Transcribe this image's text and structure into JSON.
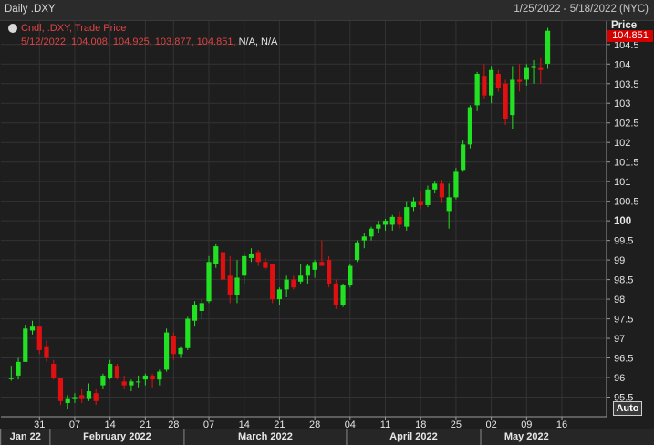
{
  "window": {
    "title": "Daily .DXY",
    "date_range": "1/25/2022 - 5/18/2022 (NYC)"
  },
  "legend": {
    "line1": "Cndl, .DXY, Trade Price",
    "line2_values": "5/12/2022, 104.008, 104.925, 103.877, 104.851,",
    "line2_na": "N/A, N/A"
  },
  "price_axis_title": "Price",
  "last_price_label": "104.851",
  "auto_label": "Auto",
  "colors": {
    "up": "#22e022",
    "down": "#e01010",
    "background": "#1e1e1e",
    "grid": "#333333",
    "last_price_tag": "#d40000"
  },
  "chart_data": {
    "type": "candlestick",
    "symbol": ".DXY",
    "ylim": [
      95.0,
      105.1
    ],
    "yticks": [
      95.5,
      96,
      96.5,
      97,
      97.5,
      98,
      98.5,
      99,
      99.5,
      100,
      100.5,
      101,
      101.5,
      102,
      102.5,
      103,
      103.5,
      104,
      104.5
    ],
    "ytick_labels": [
      "95.5",
      "96",
      "96.5",
      "97",
      "97.5",
      "98",
      "98.5",
      "99",
      "99.5",
      "100",
      "100.5",
      "101",
      "101.5",
      "102",
      "102.5",
      "103",
      "103.5",
      "104",
      "104.5"
    ],
    "xticks": [
      {
        "index": 4,
        "label": "31"
      },
      {
        "index": 9,
        "label": "07"
      },
      {
        "index": 14,
        "label": "14"
      },
      {
        "index": 19,
        "label": "21"
      },
      {
        "index": 23,
        "label": "28"
      },
      {
        "index": 28,
        "label": "07"
      },
      {
        "index": 33,
        "label": "14"
      },
      {
        "index": 38,
        "label": "21"
      },
      {
        "index": 43,
        "label": "28"
      },
      {
        "index": 48,
        "label": "04"
      },
      {
        "index": 53,
        "label": "11"
      },
      {
        "index": 58,
        "label": "18"
      },
      {
        "index": 63,
        "label": "25"
      },
      {
        "index": 68,
        "label": "02"
      },
      {
        "index": 73,
        "label": "09"
      },
      {
        "index": 78,
        "label": "16"
      }
    ],
    "months": [
      {
        "label": "Jan 22",
        "start": -1,
        "end": 6
      },
      {
        "label": "February 2022",
        "start": 6,
        "end": 25
      },
      {
        "label": "March 2022",
        "start": 25,
        "end": 48
      },
      {
        "label": "April 2022",
        "start": 48,
        "end": 67
      },
      {
        "label": "May 2022",
        "start": 67,
        "end": 80
      }
    ],
    "x_count": 80,
    "candles": [
      {
        "o": 95.96,
        "h": 96.3,
        "l": 95.92,
        "c": 96.0
      },
      {
        "o": 96.05,
        "h": 96.5,
        "l": 95.95,
        "c": 96.4
      },
      {
        "o": 96.4,
        "h": 97.35,
        "l": 96.4,
        "c": 97.25
      },
      {
        "o": 97.2,
        "h": 97.45,
        "l": 97.1,
        "c": 97.3
      },
      {
        "o": 97.3,
        "h": 97.3,
        "l": 96.6,
        "c": 96.7
      },
      {
        "o": 96.8,
        "h": 96.95,
        "l": 96.4,
        "c": 96.5
      },
      {
        "o": 96.35,
        "h": 96.45,
        "l": 95.95,
        "c": 96.0
      },
      {
        "o": 96.0,
        "h": 96.0,
        "l": 95.3,
        "c": 95.4
      },
      {
        "o": 95.35,
        "h": 95.55,
        "l": 95.2,
        "c": 95.45
      },
      {
        "o": 95.45,
        "h": 95.6,
        "l": 95.35,
        "c": 95.5
      },
      {
        "o": 95.55,
        "h": 95.7,
        "l": 95.35,
        "c": 95.45
      },
      {
        "o": 95.45,
        "h": 95.85,
        "l": 95.4,
        "c": 95.65
      },
      {
        "o": 95.6,
        "h": 95.7,
        "l": 95.3,
        "c": 95.4
      },
      {
        "o": 95.8,
        "h": 96.1,
        "l": 95.7,
        "c": 96.05
      },
      {
        "o": 96.0,
        "h": 96.45,
        "l": 95.95,
        "c": 96.35
      },
      {
        "o": 96.3,
        "h": 96.35,
        "l": 95.95,
        "c": 96.0
      },
      {
        "o": 95.9,
        "h": 96.05,
        "l": 95.7,
        "c": 95.8
      },
      {
        "o": 95.8,
        "h": 95.95,
        "l": 95.65,
        "c": 95.9
      },
      {
        "o": 95.9,
        "h": 96.05,
        "l": 95.75,
        "c": 95.9
      },
      {
        "o": 95.95,
        "h": 96.1,
        "l": 95.8,
        "c": 96.05
      },
      {
        "o": 96.05,
        "h": 96.1,
        "l": 95.75,
        "c": 95.95
      },
      {
        "o": 95.95,
        "h": 96.2,
        "l": 95.8,
        "c": 96.15
      },
      {
        "o": 96.2,
        "h": 97.25,
        "l": 96.15,
        "c": 97.15
      },
      {
        "o": 97.05,
        "h": 97.15,
        "l": 96.45,
        "c": 96.6
      },
      {
        "o": 96.6,
        "h": 96.8,
        "l": 96.5,
        "c": 96.75
      },
      {
        "o": 96.75,
        "h": 97.55,
        "l": 96.7,
        "c": 97.5
      },
      {
        "o": 97.45,
        "h": 97.95,
        "l": 97.3,
        "c": 97.85
      },
      {
        "o": 97.7,
        "h": 98.0,
        "l": 97.5,
        "c": 97.9
      },
      {
        "o": 97.95,
        "h": 99.1,
        "l": 97.9,
        "c": 98.95
      },
      {
        "o": 98.9,
        "h": 99.4,
        "l": 98.8,
        "c": 99.35
      },
      {
        "o": 99.2,
        "h": 99.3,
        "l": 98.45,
        "c": 98.5
      },
      {
        "o": 98.6,
        "h": 99.1,
        "l": 97.9,
        "c": 98.1
      },
      {
        "o": 98.1,
        "h": 99.0,
        "l": 97.9,
        "c": 98.55
      },
      {
        "o": 98.6,
        "h": 99.2,
        "l": 98.4,
        "c": 99.1
      },
      {
        "o": 99.05,
        "h": 99.3,
        "l": 98.95,
        "c": 99.15
      },
      {
        "o": 99.2,
        "h": 99.25,
        "l": 98.85,
        "c": 98.95
      },
      {
        "o": 98.95,
        "h": 99.05,
        "l": 98.75,
        "c": 98.8
      },
      {
        "o": 98.9,
        "h": 98.9,
        "l": 97.9,
        "c": 98.0
      },
      {
        "o": 98.0,
        "h": 98.3,
        "l": 97.85,
        "c": 98.25
      },
      {
        "o": 98.25,
        "h": 98.6,
        "l": 98.05,
        "c": 98.5
      },
      {
        "o": 98.5,
        "h": 98.6,
        "l": 98.25,
        "c": 98.3
      },
      {
        "o": 98.45,
        "h": 98.9,
        "l": 98.4,
        "c": 98.6
      },
      {
        "o": 98.6,
        "h": 98.9,
        "l": 98.4,
        "c": 98.85
      },
      {
        "o": 98.75,
        "h": 99.0,
        "l": 98.55,
        "c": 98.95
      },
      {
        "o": 98.95,
        "h": 99.5,
        "l": 98.85,
        "c": 98.85
      },
      {
        "o": 99.0,
        "h": 99.1,
        "l": 98.3,
        "c": 98.4
      },
      {
        "o": 98.4,
        "h": 98.5,
        "l": 97.75,
        "c": 97.85
      },
      {
        "o": 97.85,
        "h": 98.4,
        "l": 97.8,
        "c": 98.35
      },
      {
        "o": 98.35,
        "h": 98.9,
        "l": 98.3,
        "c": 98.85
      },
      {
        "o": 99.0,
        "h": 99.5,
        "l": 98.95,
        "c": 99.45
      },
      {
        "o": 99.5,
        "h": 99.7,
        "l": 99.3,
        "c": 99.6
      },
      {
        "o": 99.6,
        "h": 99.85,
        "l": 99.5,
        "c": 99.8
      },
      {
        "o": 99.8,
        "h": 100.0,
        "l": 99.7,
        "c": 99.9
      },
      {
        "o": 99.9,
        "h": 100.05,
        "l": 99.75,
        "c": 100.0
      },
      {
        "o": 99.9,
        "h": 100.15,
        "l": 99.75,
        "c": 100.1
      },
      {
        "o": 100.1,
        "h": 100.25,
        "l": 99.8,
        "c": 99.9
      },
      {
        "o": 99.85,
        "h": 100.5,
        "l": 99.75,
        "c": 100.35
      },
      {
        "o": 100.35,
        "h": 100.6,
        "l": 100.25,
        "c": 100.5
      },
      {
        "o": 100.5,
        "h": 100.75,
        "l": 100.3,
        "c": 100.4
      },
      {
        "o": 100.4,
        "h": 100.9,
        "l": 100.35,
        "c": 100.8
      },
      {
        "o": 100.8,
        "h": 101.0,
        "l": 100.7,
        "c": 100.95
      },
      {
        "o": 100.95,
        "h": 101.05,
        "l": 100.45,
        "c": 100.6
      },
      {
        "o": 100.25,
        "h": 100.95,
        "l": 99.8,
        "c": 100.6
      },
      {
        "o": 100.6,
        "h": 101.35,
        "l": 100.55,
        "c": 101.25
      },
      {
        "o": 101.3,
        "h": 102.05,
        "l": 101.25,
        "c": 101.95
      },
      {
        "o": 101.95,
        "h": 102.95,
        "l": 101.85,
        "c": 102.9
      },
      {
        "o": 102.95,
        "h": 103.8,
        "l": 102.8,
        "c": 103.75
      },
      {
        "o": 103.7,
        "h": 104.0,
        "l": 103.1,
        "c": 103.2
      },
      {
        "o": 103.2,
        "h": 103.95,
        "l": 103.0,
        "c": 103.85
      },
      {
        "o": 103.75,
        "h": 103.85,
        "l": 103.3,
        "c": 103.4
      },
      {
        "o": 103.5,
        "h": 103.6,
        "l": 102.45,
        "c": 102.6
      },
      {
        "o": 102.7,
        "h": 103.95,
        "l": 102.35,
        "c": 103.6
      },
      {
        "o": 103.6,
        "h": 104.0,
        "l": 103.3,
        "c": 103.55
      },
      {
        "o": 103.6,
        "h": 104.0,
        "l": 103.45,
        "c": 103.9
      },
      {
        "o": 103.9,
        "h": 104.1,
        "l": 103.5,
        "c": 103.95
      },
      {
        "o": 103.9,
        "h": 104.15,
        "l": 103.5,
        "c": 103.85
      },
      {
        "o": 104.008,
        "h": 104.925,
        "l": 103.877,
        "c": 104.851
      }
    ]
  }
}
